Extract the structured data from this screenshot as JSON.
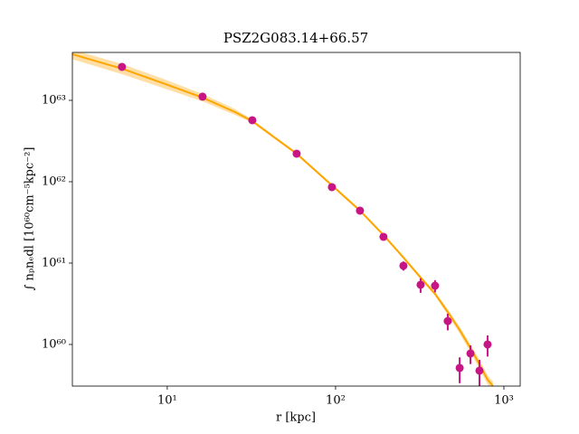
{
  "chart_data": {
    "type": "scatter",
    "title": "PSZ2G083.14+66.57",
    "xlabel": "r [kpc]",
    "ylabel": "∫ nₚnₑdl [10⁶⁰cm⁻⁵kpc⁻²]",
    "xlog": true,
    "ylog": true,
    "grid": false,
    "color": "#c71585",
    "x": [
      5.38,
      16.2,
      32.0,
      58.7,
      95.1,
      139.6,
      192.6,
      253,
      320,
      390,
      464,
      546,
      633,
      716,
      800
    ],
    "values": [
      2.58e+63,
      1.11e+63,
      5.7e+62,
      2.21e+62,
      8.58e+61,
      4.41e+61,
      2.1e+61,
      9.27e+60,
      5.41e+60,
      5.27e+60,
      1.94e+60,
      5.14e+59,
      7.74e+59,
      4.76e+59,
      1e+60
    ],
    "yerr": [
      1e+62,
      4e+61,
      2e+61,
      8e+60,
      3e+60,
      2e+60,
      1e+60,
      1.2e+60,
      1.1e+60,
      9e+59,
      4.5e+59,
      1.8e+59,
      2e+59,
      1.7e+59,
      2.9e+59
    ],
    "model": {
      "color": "#ffa500",
      "band_color": "#ffd27f",
      "x": [
        2.73,
        5.38,
        9.4,
        16.2,
        25.3,
        32.0,
        58.7,
        95.1,
        139.6,
        192.6,
        253,
        320,
        390,
        464,
        546,
        633,
        716,
        800,
        861
      ],
      "y": [
        3.69e+63,
        2.45e+63,
        1.63e+63,
        1.08e+63,
        7.17e+62,
        5.55e+62,
        2.21e+62,
        9.03e+61,
        4.41e+61,
        2.21e+61,
        1.17e+61,
        6.64e+60,
        4.19e+60,
        2.51e+60,
        1.51e+60,
        9.03e+59,
        5.7e+59,
        3.69e+59,
        3.08e+59
      ],
      "lower": [
        3.2e+63,
        2.1e+63,
        1.42e+63,
        9.7e+62,
        6.6e+62,
        5.3e+62,
        2.12e+62,
        8.7e+61,
        4.25e+61,
        2.13e+61,
        1.12e+61,
        6.3e+60,
        3.95e+60,
        2.3e+60,
        1.36e+60,
        8e+59,
        5e+59,
        3.2e+59,
        2.7e+59
      ],
      "upper": [
        4.2e+63,
        2.8e+63,
        1.85e+63,
        1.2e+63,
        7.8e+62,
        5.8e+62,
        2.3e+62,
        9.4e+61,
        4.6e+61,
        2.3e+61,
        1.22e+61,
        7e+60,
        4.45e+60,
        2.7e+60,
        1.65e+60,
        1e+60,
        6.5e+59,
        4.2e+59,
        3.5e+59
      ]
    },
    "xlim": [
      2.73,
      1250
    ],
    "ylim": [
      3.08e+59,
      3.88e+63
    ],
    "xticks": [
      {
        "value": 10,
        "label": "10¹"
      },
      {
        "value": 100,
        "label": "10²"
      },
      {
        "value": 1000,
        "label": "10³"
      }
    ],
    "yticks": [
      {
        "value": 1e+60,
        "label": "10⁶⁰"
      },
      {
        "value": 1e+61,
        "label": "10⁶¹"
      },
      {
        "value": 1e+62,
        "label": "10⁶²"
      },
      {
        "value": 1e+63,
        "label": "10⁶³"
      }
    ]
  }
}
